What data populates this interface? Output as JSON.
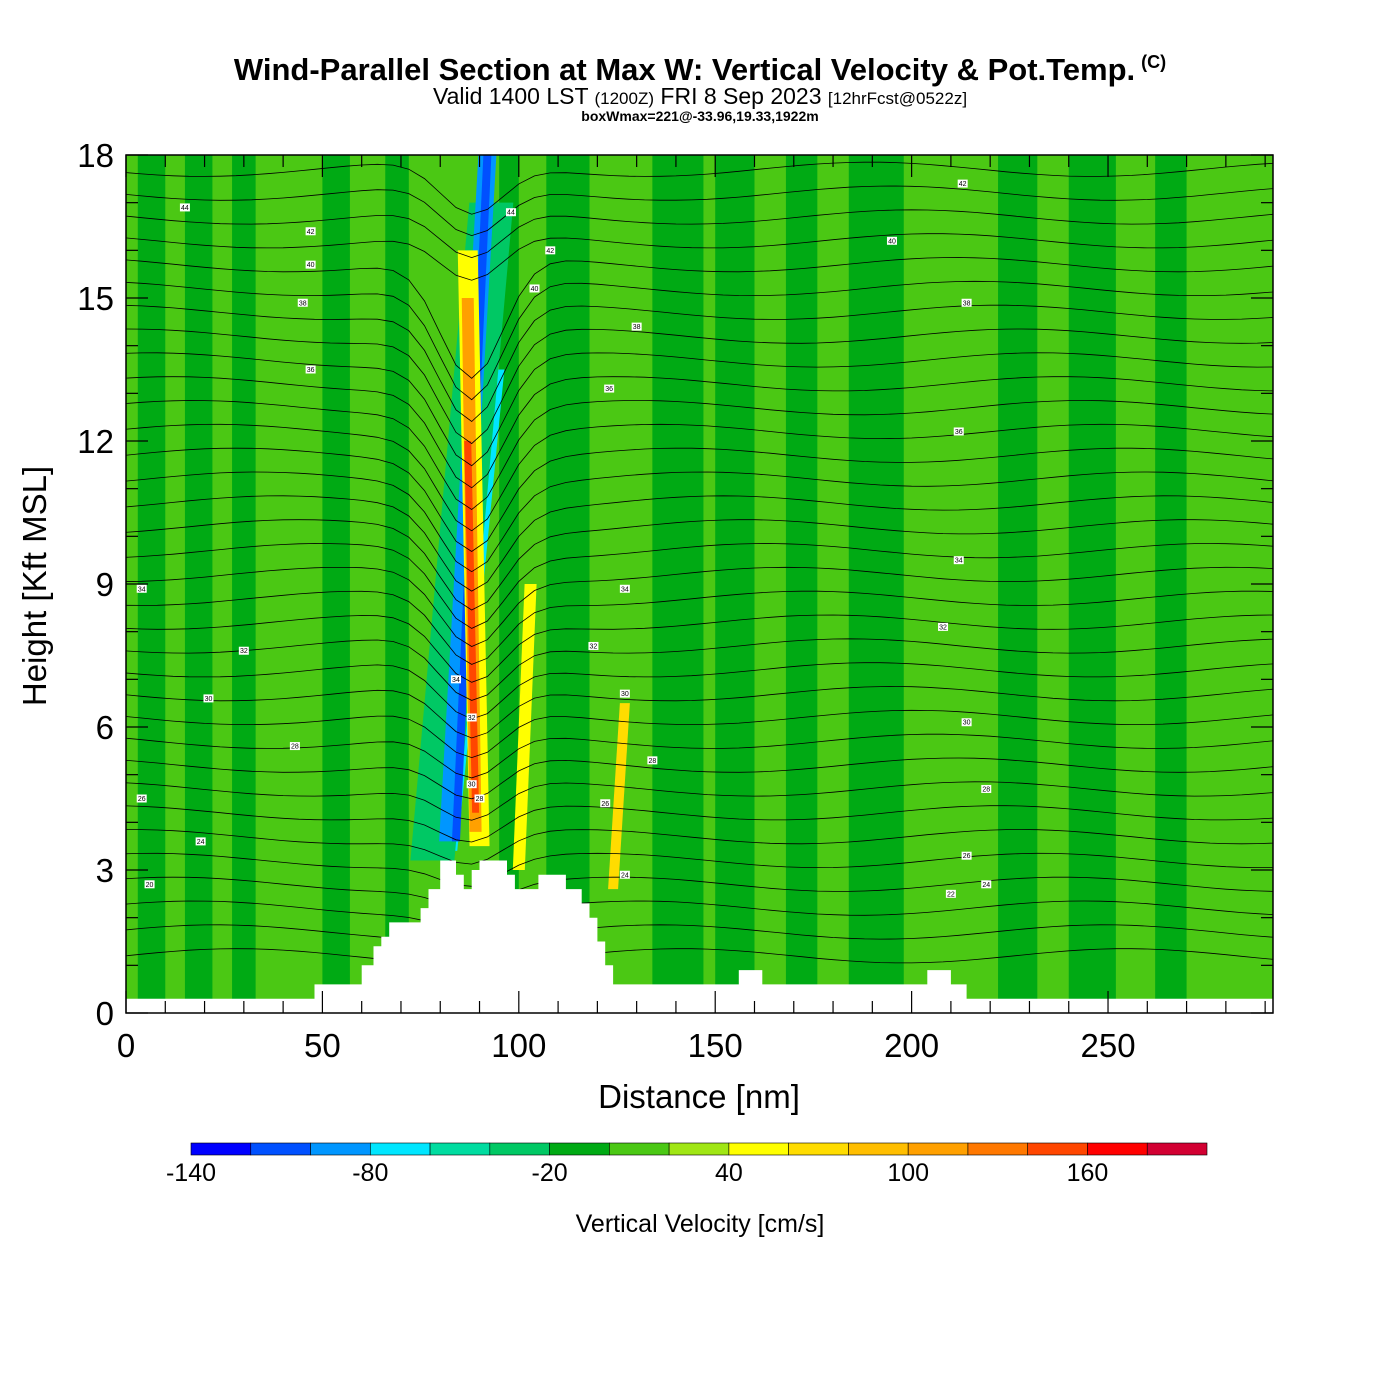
{
  "header": {
    "title": "Wind-Parallel Section at Max W: Vertical Velocity & Pot.Temp.",
    "copyright": "(C)",
    "valid_prefix": "Valid 1400 LST",
    "valid_utc": "(1200Z)",
    "valid_date": "FRI 8 Sep 2023",
    "forecast": "[12hrFcst@0522z]",
    "box_info": "boxWmax=221@-33.96,19.33,1922m"
  },
  "chart_data": {
    "type": "heatmap",
    "xlabel": "Distance [nm]",
    "ylabel": "Height [Kft MSL]",
    "xlim": [
      0,
      292
    ],
    "ylim": [
      0,
      18
    ],
    "x_ticks": [
      0,
      50,
      100,
      150,
      200,
      250
    ],
    "y_ticks": [
      0,
      3,
      6,
      9,
      12,
      15,
      18
    ],
    "colorbar": {
      "title": "Vertical Velocity [cm/s]",
      "levels": [
        -140,
        -120,
        -100,
        -80,
        -60,
        -40,
        -20,
        0,
        20,
        40,
        60,
        80,
        100,
        120,
        140,
        160,
        180,
        200
      ],
      "tick_labels": [
        "-140",
        "-80",
        "-20",
        "40",
        "100",
        "160"
      ],
      "tick_values": [
        -140,
        -80,
        -20,
        40,
        100,
        160
      ],
      "colors": [
        "#0000ff",
        "#0050ff",
        "#0096ff",
        "#00e6ff",
        "#00dca0",
        "#00c864",
        "#00aa14",
        "#4bc814",
        "#a0e614",
        "#ffff00",
        "#ffdc00",
        "#ffbe00",
        "#ffa000",
        "#ff7800",
        "#ff4600",
        "#ff0000",
        "#d20032"
      ]
    },
    "isentrope_labels": [
      {
        "text": "44",
        "x": 15,
        "y": 16.9
      },
      {
        "text": "42",
        "x": 47,
        "y": 16.4
      },
      {
        "text": "40",
        "x": 47,
        "y": 15.7
      },
      {
        "text": "38",
        "x": 45,
        "y": 14.9
      },
      {
        "text": "36",
        "x": 47,
        "y": 13.5
      },
      {
        "text": "34",
        "x": 4,
        "y": 8.9
      },
      {
        "text": "32",
        "x": 30,
        "y": 7.6
      },
      {
        "text": "30",
        "x": 21,
        "y": 6.6
      },
      {
        "text": "28",
        "x": 43,
        "y": 5.6
      },
      {
        "text": "26",
        "x": 4,
        "y": 4.5
      },
      {
        "text": "24",
        "x": 19,
        "y": 3.6
      },
      {
        "text": "20",
        "x": 6,
        "y": 2.7
      },
      {
        "text": "44",
        "x": 98,
        "y": 16.8
      },
      {
        "text": "42",
        "x": 108,
        "y": 16.0
      },
      {
        "text": "40",
        "x": 104,
        "y": 15.2
      },
      {
        "text": "38",
        "x": 130,
        "y": 14.4
      },
      {
        "text": "36",
        "x": 123,
        "y": 13.1
      },
      {
        "text": "34",
        "x": 127,
        "y": 8.9
      },
      {
        "text": "32",
        "x": 119,
        "y": 7.7
      },
      {
        "text": "30",
        "x": 127,
        "y": 6.7
      },
      {
        "text": "28",
        "x": 134,
        "y": 5.3
      },
      {
        "text": "26",
        "x": 122,
        "y": 4.4
      },
      {
        "text": "24",
        "x": 127,
        "y": 2.9
      },
      {
        "text": "34",
        "x": 84,
        "y": 7.0
      },
      {
        "text": "32",
        "x": 88,
        "y": 6.2
      },
      {
        "text": "30",
        "x": 88,
        "y": 4.8
      },
      {
        "text": "28",
        "x": 90,
        "y": 4.5
      },
      {
        "text": "40",
        "x": 195,
        "y": 16.2
      },
      {
        "text": "42",
        "x": 213,
        "y": 17.4
      },
      {
        "text": "38",
        "x": 214,
        "y": 14.9
      },
      {
        "text": "36",
        "x": 212,
        "y": 12.2
      },
      {
        "text": "34",
        "x": 212,
        "y": 9.5
      },
      {
        "text": "32",
        "x": 208,
        "y": 8.1
      },
      {
        "text": "30",
        "x": 214,
        "y": 6.1
      },
      {
        "text": "28",
        "x": 219,
        "y": 4.7
      },
      {
        "text": "26",
        "x": 214,
        "y": 3.3
      },
      {
        "text": "24",
        "x": 219,
        "y": 2.7
      },
      {
        "text": "22",
        "x": 210,
        "y": 2.5
      }
    ],
    "terrain_profile": [
      [
        0,
        0.3
      ],
      [
        48,
        0.3
      ],
      [
        48,
        0.6
      ],
      [
        60,
        0.6
      ],
      [
        60,
        1.0
      ],
      [
        63,
        1.0
      ],
      [
        63,
        1.4
      ],
      [
        65,
        1.4
      ],
      [
        65,
        1.6
      ],
      [
        67,
        1.6
      ],
      [
        67,
        1.9
      ],
      [
        75,
        1.9
      ],
      [
        75,
        2.2
      ],
      [
        77,
        2.2
      ],
      [
        77,
        2.6
      ],
      [
        80,
        2.6
      ],
      [
        80,
        3.2
      ],
      [
        84,
        3.2
      ],
      [
        84,
        2.9
      ],
      [
        86,
        2.9
      ],
      [
        86,
        2.6
      ],
      [
        88,
        2.6
      ],
      [
        88,
        3.0
      ],
      [
        90,
        3.0
      ],
      [
        90,
        3.2
      ],
      [
        97,
        3.2
      ],
      [
        97,
        2.9
      ],
      [
        99,
        2.9
      ],
      [
        99,
        2.6
      ],
      [
        105,
        2.6
      ],
      [
        105,
        2.9
      ],
      [
        112,
        2.9
      ],
      [
        112,
        2.6
      ],
      [
        116,
        2.6
      ],
      [
        116,
        2.3
      ],
      [
        118,
        2.3
      ],
      [
        118,
        2.0
      ],
      [
        120,
        2.0
      ],
      [
        120,
        1.5
      ],
      [
        122,
        1.5
      ],
      [
        122,
        1.0
      ],
      [
        124,
        1.0
      ],
      [
        124,
        0.6
      ],
      [
        156,
        0.6
      ],
      [
        156,
        0.9
      ],
      [
        162,
        0.9
      ],
      [
        162,
        0.6
      ],
      [
        204,
        0.6
      ],
      [
        204,
        0.9
      ],
      [
        210,
        0.9
      ],
      [
        210,
        0.6
      ],
      [
        214,
        0.6
      ],
      [
        214,
        0.3
      ],
      [
        292,
        0.3
      ]
    ],
    "field_bands": [
      {
        "x0": 0,
        "x1": 292,
        "value": 10
      },
      {
        "x0": 3,
        "x1": 10,
        "value": -10
      },
      {
        "x0": 15,
        "x1": 22,
        "value": -10
      },
      {
        "x0": 27,
        "x1": 33,
        "value": -10
      },
      {
        "x0": 50,
        "x1": 57,
        "value": -10
      },
      {
        "x0": 66,
        "x1": 72,
        "value": -10
      },
      {
        "x0": 95,
        "x1": 100,
        "value": -10
      },
      {
        "x0": 107,
        "x1": 118,
        "value": -10
      },
      {
        "x0": 134,
        "x1": 147,
        "value": -10
      },
      {
        "x0": 150,
        "x1": 160,
        "value": -10
      },
      {
        "x0": 168,
        "x1": 176,
        "value": -10
      },
      {
        "x0": 184,
        "x1": 198,
        "value": -10
      },
      {
        "x0": 222,
        "x1": 232,
        "value": -10
      },
      {
        "x0": 240,
        "x1": 252,
        "value": -10
      },
      {
        "x0": 262,
        "x1": 270,
        "value": -10
      }
    ]
  }
}
